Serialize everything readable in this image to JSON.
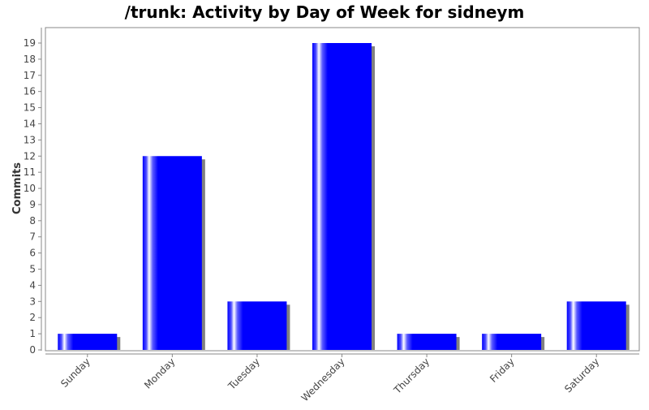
{
  "chart_data": {
    "type": "bar",
    "title": "/trunk: Activity by Day of Week for sidneym",
    "xlabel": "",
    "ylabel": "Commits",
    "categories": [
      "Sunday",
      "Monday",
      "Tuesday",
      "Wednesday",
      "Thursday",
      "Friday",
      "Saturday"
    ],
    "values": [
      1,
      12,
      3,
      19,
      1,
      1,
      3
    ],
    "ylim": [
      0,
      20
    ],
    "yticks": [
      0,
      1,
      2,
      3,
      4,
      5,
      6,
      7,
      8,
      9,
      10,
      11,
      12,
      13,
      14,
      15,
      16,
      17,
      18,
      19
    ],
    "grid": false,
    "legend": "none",
    "bar_color": "#0000ff",
    "shadow_color": "#808080"
  }
}
